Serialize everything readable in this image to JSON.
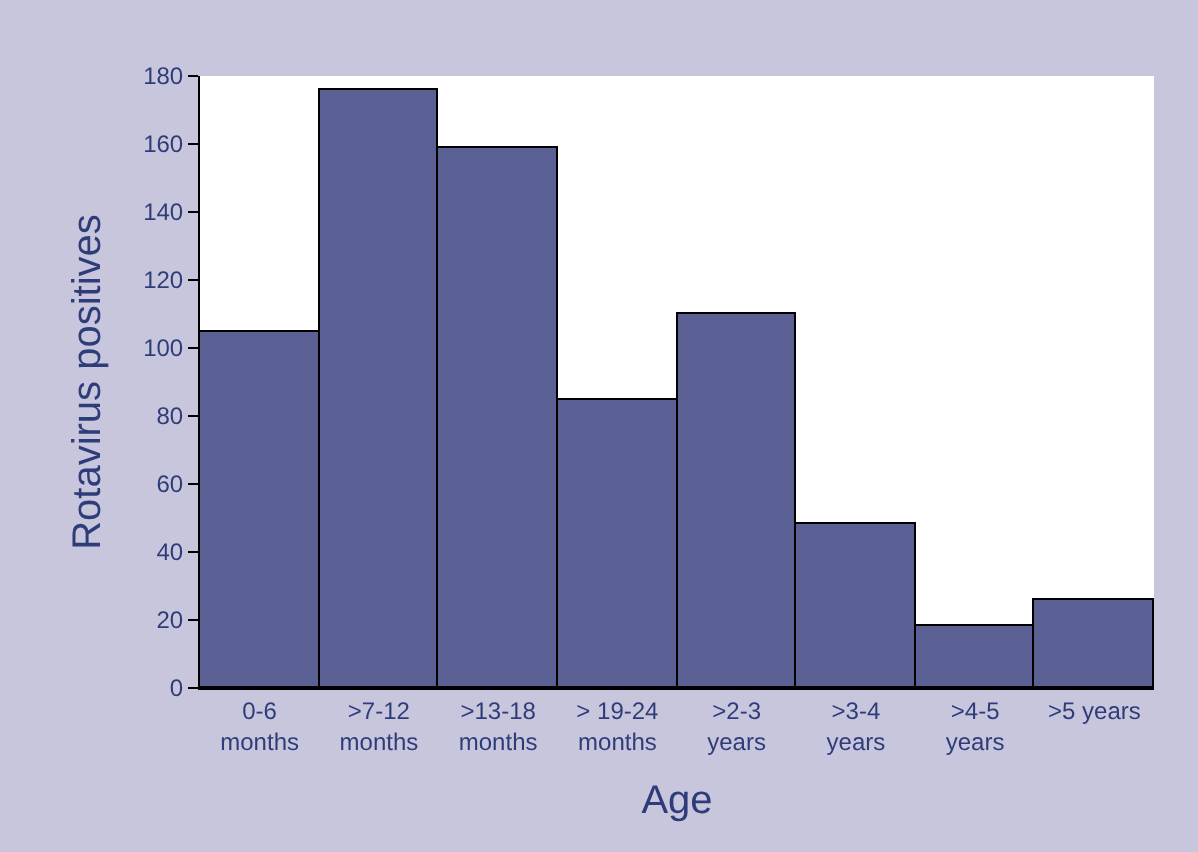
{
  "chart_data": {
    "type": "bar",
    "xlabel": "Age",
    "ylabel": "Rotavirus positives",
    "categories": [
      "0-6\nmonths",
      ">7-12\nmonths",
      ">13-18\nmonths",
      "> 19-24\nmonths",
      ">2-3\nyears",
      ">3-4\nyears",
      ">4-5\nyears",
      ">5 years"
    ],
    "values": [
      105,
      176,
      159,
      85,
      110,
      48,
      18,
      26
    ],
    "color": "#5a5f94",
    "ylim": [
      0,
      180
    ],
    "yticks": [
      0,
      20,
      40,
      60,
      80,
      100,
      120,
      140,
      160,
      180
    ]
  }
}
